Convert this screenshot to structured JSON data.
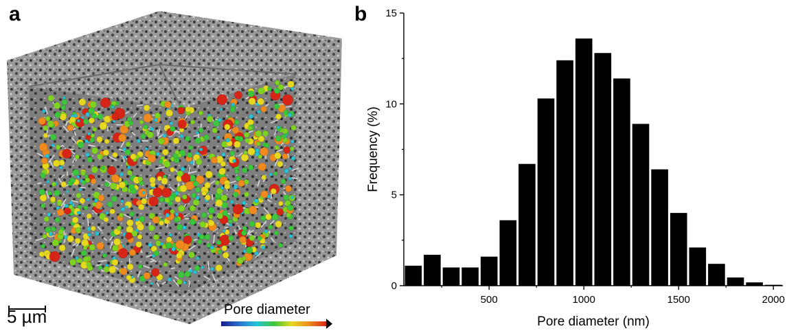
{
  "panels": {
    "a": {
      "letter": "a",
      "scale_bar_label": "5 µm",
      "colorbar_label": "Pore diameter",
      "colorbar_colors": [
        "#1a1a8c",
        "#2a6fd1",
        "#23c4d8",
        "#3cc63c",
        "#e5d81e",
        "#f08a1e",
        "#d62416"
      ],
      "sphere_colors": [
        "#3cc63c",
        "#7ed321",
        "#e5d81e",
        "#23c4d8",
        "#f08a1e",
        "#d62416",
        "#52b83a"
      ],
      "block_color": "#8f8f8f"
    },
    "b": {
      "letter": "b"
    }
  },
  "chart_data": {
    "type": "bar",
    "title": "",
    "xlabel": "Pore diameter (nm)",
    "ylabel": "Frequency (%)",
    "xlim": [
      50,
      2050
    ],
    "ylim": [
      0,
      15
    ],
    "xticks": [
      500,
      1000,
      1500,
      2000
    ],
    "yticks": [
      0,
      5,
      10,
      15
    ],
    "bin_width": 100,
    "bin_centers": [
      100,
      200,
      300,
      400,
      500,
      600,
      700,
      800,
      900,
      1000,
      1100,
      1200,
      1300,
      1400,
      1500,
      1600,
      1700,
      1800,
      1900,
      2000
    ],
    "values": [
      1.1,
      1.7,
      1.0,
      1.0,
      1.6,
      3.6,
      6.7,
      10.3,
      12.4,
      13.6,
      12.8,
      11.4,
      8.9,
      6.4,
      4.0,
      2.1,
      1.2,
      0.45,
      0.18,
      0.05
    ],
    "bar_color": "#000000",
    "grid": false,
    "legend": "none"
  }
}
